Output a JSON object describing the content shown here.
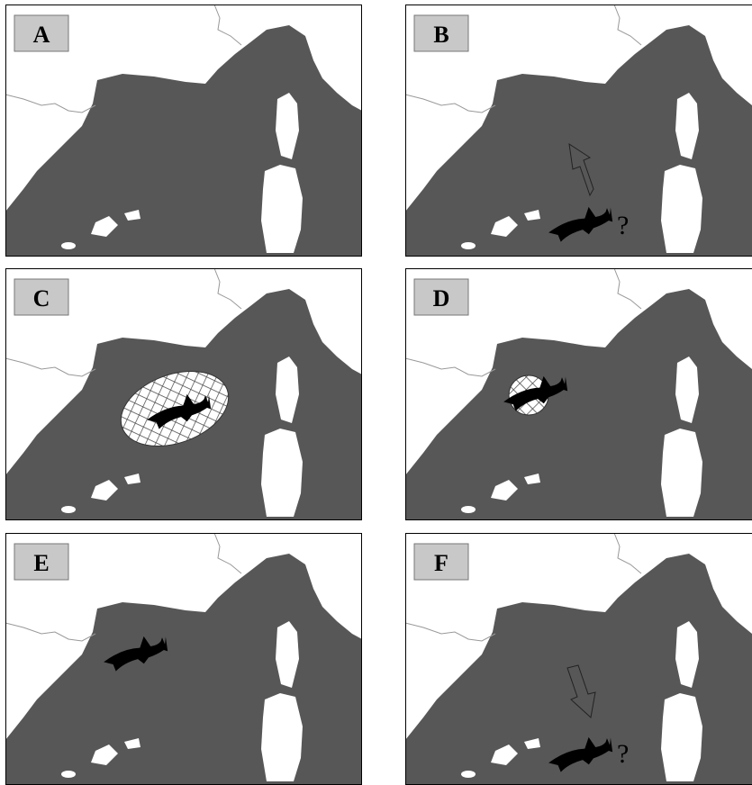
{
  "panels": [
    {
      "label": "A"
    },
    {
      "label": "B",
      "annotation": "?"
    },
    {
      "label": "C"
    },
    {
      "label": "D"
    },
    {
      "label": "E"
    },
    {
      "label": "F",
      "annotation": "?"
    }
  ]
}
